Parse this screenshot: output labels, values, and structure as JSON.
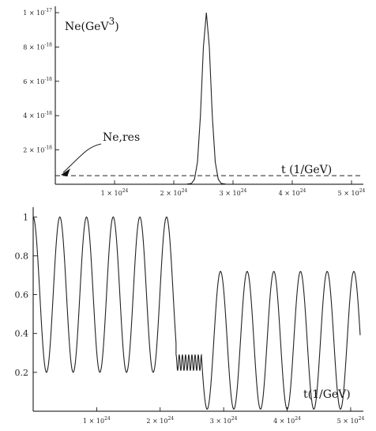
{
  "chart_data": [
    {
      "type": "line",
      "ylabel": "Ne(GeV",
      "ylabel_exp": "3",
      "xlabel": "t (1/GeV)",
      "xlim": [
        0,
        5.2e+24
      ],
      "ylim": [
        0,
        1e-17
      ],
      "x_ticks": [
        {
          "value": 1e+24,
          "mant": "1",
          "exp": "24"
        },
        {
          "value": 2e+24,
          "mant": "2",
          "exp": "24"
        },
        {
          "value": 3e+24,
          "mant": "3",
          "exp": "24"
        },
        {
          "value": 4e+24,
          "mant": "4",
          "exp": "24"
        },
        {
          "value": 5e+24,
          "mant": "5",
          "exp": "24"
        }
      ],
      "y_ticks": [
        {
          "value": 2e-18,
          "mant": "2",
          "exp": "-18"
        },
        {
          "value": 4e-18,
          "mant": "4",
          "exp": "-18"
        },
        {
          "value": 6e-18,
          "mant": "6",
          "exp": "-18"
        },
        {
          "value": 8e-18,
          "mant": "8",
          "exp": "-18"
        },
        {
          "value": 1e-17,
          "mant": "1",
          "exp": "-17"
        }
      ],
      "annotation": {
        "text": "Ne,res",
        "x": 0.0,
        "y": 5e-19
      },
      "series": [
        {
          "x": [
            2.2e+24,
            2.3e+24,
            2.35e+24,
            2.4e+24,
            2.45e+24,
            2.5e+24,
            2.55e+24,
            2.6e+24,
            2.65e+24,
            2.7e+24,
            2.75e+24,
            2.8e+24,
            2.9e+24
          ],
          "y": [
            0,
            5e-20,
            3e-19,
            1.3e-18,
            4e-18,
            8e-18,
            1e-17,
            8e-18,
            4e-18,
            1.3e-18,
            3e-19,
            5e-20,
            0
          ]
        },
        {
          "style": "dashed",
          "x": [
            0,
            5.2e+24
          ],
          "y": [
            5e-19,
            5e-19
          ]
        }
      ]
    },
    {
      "type": "line",
      "xlabel": "t(1/GeV)",
      "xlim": [
        0,
        5.2e+24
      ],
      "ylim": [
        0,
        1.05
      ],
      "x_ticks": [
        {
          "value": 1e+24,
          "mant": "1",
          "exp": "24"
        },
        {
          "value": 2e+24,
          "mant": "2",
          "exp": "24"
        },
        {
          "value": 3e+24,
          "mant": "3",
          "exp": "24"
        },
        {
          "value": 4e+24,
          "mant": "4",
          "exp": "24"
        },
        {
          "value": 5e+24,
          "mant": "5",
          "exp": "24"
        }
      ],
      "y_ticks": [
        {
          "value": 0.2,
          "label": "0.2"
        },
        {
          "value": 0.4,
          "label": "0.4"
        },
        {
          "value": 0.6,
          "label": "0.6"
        },
        {
          "value": 0.8,
          "label": "0.8"
        },
        {
          "value": 1.0,
          "label": "1"
        }
      ],
      "series": [
        {
          "segments": [
            {
              "t_start": 0.0,
              "t_end": 2.25e+24,
              "center": 0.6,
              "amplitude": 0.4,
              "period": 4.2e+23,
              "phase_peak_at": 0.0
            },
            {
              "t_start": 2.25e+24,
              "t_end": 2.65e+24,
              "center": 0.25,
              "amplitude": 0.04,
              "period": 5e+22,
              "phase_peak_at": 2.25e+24
            },
            {
              "t_start": 2.65e+24,
              "t_end": 5.15e+24,
              "center": 0.365,
              "amplitude": 0.355,
              "period": 4.2e+23,
              "phase_peak_at": 2.95e+24
            }
          ]
        }
      ]
    }
  ]
}
